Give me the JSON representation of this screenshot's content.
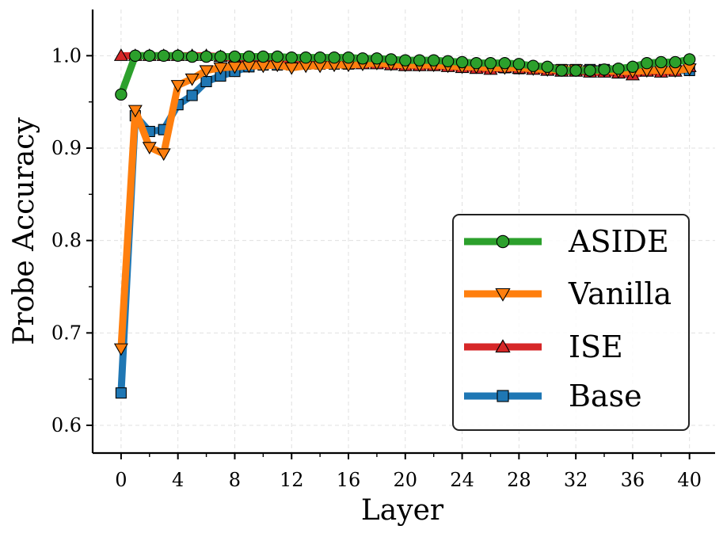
{
  "chart_data": {
    "type": "line",
    "title": "",
    "xlabel": "Layer",
    "ylabel": "Probe Accuracy",
    "xlim": [
      -2,
      41.8
    ],
    "ylim": [
      0.57,
      1.05
    ],
    "xticks": [
      0,
      4,
      8,
      12,
      16,
      20,
      24,
      28,
      32,
      36,
      40
    ],
    "xtick_labels": [
      "0",
      "4",
      "8",
      "12",
      "16",
      "20",
      "24",
      "28",
      "32",
      "36",
      "40"
    ],
    "yticks": [
      0.6,
      0.7,
      0.8,
      0.9,
      1.0
    ],
    "ytick_labels": [
      "0.6",
      "0.7",
      "0.8",
      "0.9",
      "1.0"
    ],
    "grid": true,
    "legend_position": "bottom-right",
    "x": [
      0,
      1,
      2,
      3,
      4,
      5,
      6,
      7,
      8,
      9,
      10,
      11,
      12,
      13,
      14,
      15,
      16,
      17,
      18,
      19,
      20,
      21,
      22,
      23,
      24,
      25,
      26,
      27,
      28,
      29,
      30,
      31,
      32,
      33,
      34,
      35,
      36,
      37,
      38,
      39,
      40
    ],
    "series": [
      {
        "name": "Base",
        "color": "#1f77b4",
        "marker": "square",
        "values": [
          0.635,
          0.935,
          0.918,
          0.92,
          0.947,
          0.957,
          0.972,
          0.978,
          0.983,
          0.988,
          0.99,
          0.99,
          0.99,
          0.991,
          0.991,
          0.991,
          0.991,
          0.992,
          0.993,
          0.992,
          0.991,
          0.991,
          0.991,
          0.99,
          0.989,
          0.988,
          0.987,
          0.987,
          0.986,
          0.986,
          0.985,
          0.985,
          0.985,
          0.985,
          0.985,
          0.984,
          0.984,
          0.985,
          0.985,
          0.984,
          0.984
        ]
      },
      {
        "name": "ISE",
        "color": "#d62728",
        "marker": "triangle-up",
        "values": [
          1.0,
          1.0,
          1.0,
          1.0,
          1.0,
          1.0,
          1.0,
          0.999,
          0.997,
          0.995,
          0.994,
          0.993,
          0.993,
          0.993,
          0.992,
          0.992,
          0.991,
          0.991,
          0.991,
          0.99,
          0.989,
          0.989,
          0.989,
          0.988,
          0.987,
          0.986,
          0.985,
          0.987,
          0.986,
          0.985,
          0.984,
          0.983,
          0.983,
          0.982,
          0.982,
          0.981,
          0.979,
          0.983,
          0.982,
          0.983,
          0.988
        ]
      },
      {
        "name": "Vanilla",
        "color": "#ff7f0e",
        "marker": "triangle-down",
        "values": [
          0.683,
          0.941,
          0.901,
          0.894,
          0.968,
          0.975,
          0.984,
          0.987,
          0.988,
          0.989,
          0.989,
          0.99,
          0.987,
          0.989,
          0.989,
          0.99,
          0.99,
          0.991,
          0.992,
          0.991,
          0.99,
          0.99,
          0.99,
          0.989,
          0.988,
          0.988,
          0.987,
          0.987,
          0.987,
          0.986,
          0.985,
          0.985,
          0.985,
          0.984,
          0.984,
          0.983,
          0.983,
          0.984,
          0.984,
          0.984,
          0.986
        ]
      },
      {
        "name": "ASIDE",
        "color": "#2ca02c",
        "marker": "circle",
        "values": [
          0.958,
          1.0,
          1.0,
          1.0,
          1.0,
          0.999,
          0.999,
          0.999,
          0.999,
          0.999,
          0.999,
          0.999,
          0.998,
          0.998,
          0.998,
          0.998,
          0.998,
          0.997,
          0.997,
          0.996,
          0.995,
          0.995,
          0.995,
          0.994,
          0.993,
          0.992,
          0.992,
          0.992,
          0.991,
          0.989,
          0.988,
          0.984,
          0.984,
          0.984,
          0.985,
          0.986,
          0.988,
          0.992,
          0.993,
          0.993,
          0.996
        ]
      }
    ],
    "legend_order": [
      "ASIDE",
      "Vanilla",
      "ISE",
      "Base"
    ]
  }
}
